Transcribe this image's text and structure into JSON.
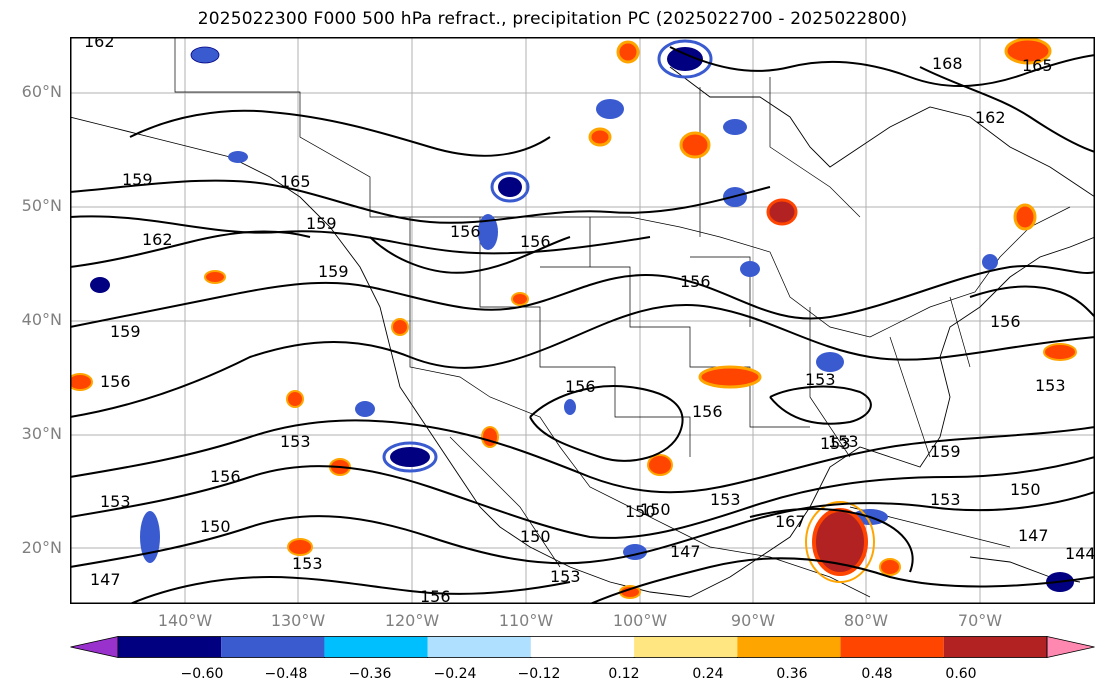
{
  "title": "2025022300 F000 500 hPa refract., precipitation PC (2025022700 - 2025022800)",
  "lat_labels": [
    "60°N",
    "50°N",
    "40°N",
    "30°N",
    "20°N"
  ],
  "lon_labels": [
    "140°W",
    "130°W",
    "120°W",
    "110°W",
    "100°W",
    "90°W",
    "80°W",
    "70°W"
  ],
  "contour_labels": [
    "162",
    "168",
    "165",
    "162",
    "159",
    "162",
    "156",
    "159",
    "165",
    "156",
    "159",
    "159",
    "156",
    "156",
    "153",
    "156",
    "156",
    "153",
    "153",
    "153",
    "153",
    "156",
    "150",
    "150",
    "153",
    "156",
    "147",
    "153",
    "150",
    "159",
    "153",
    "150",
    "147",
    "144",
    "167",
    "150",
    "153",
    "156",
    "153",
    "147"
  ],
  "colorbar": {
    "colors": [
      "#9932cc",
      "#000080",
      "#3a5bd0",
      "#00bfff",
      "#b0e0ff",
      "#ffffff",
      "#ffe680",
      "#ffa500",
      "#ff4500",
      "#b22222",
      "#ff88b0"
    ],
    "labels": [
      "−0.60",
      "−0.48",
      "−0.36",
      "−0.24",
      "−0.12",
      "0.12",
      "0.24",
      "0.36",
      "0.48",
      "0.60"
    ]
  }
}
